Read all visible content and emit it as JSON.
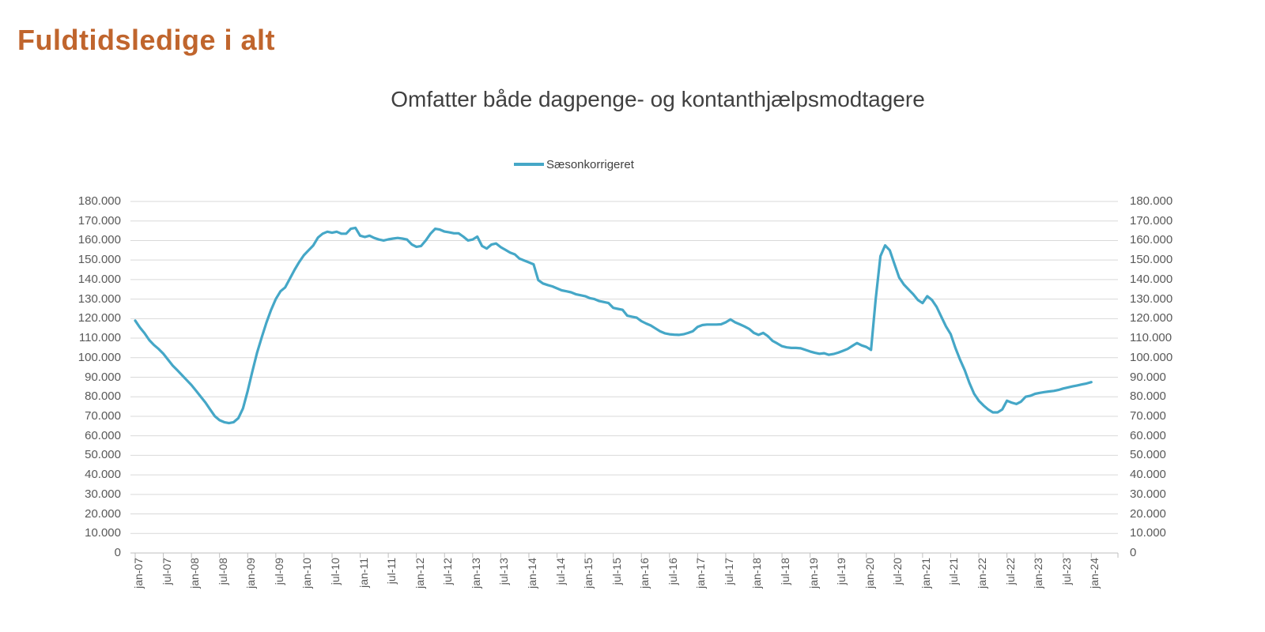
{
  "page": {
    "title": "Fuldtidsledige i alt"
  },
  "chart": {
    "title": "Omfatter både dagpenge- og kontanthjælpsmodtagere",
    "legend": {
      "label": "Sæsonkorrigeret"
    },
    "colors": {
      "series": "#45A7C7",
      "page_title": "#C0652D",
      "chart_title_text": "#404040",
      "axis_text": "#595959",
      "gridline": "#D9D9D9",
      "axis_line": "#BFBFBF"
    }
  },
  "chart_data": {
    "type": "line",
    "title": "Omfatter både dagpenge- og kontanthjælpsmodtagere",
    "x_start": "jan-07",
    "x_end": "jan-24",
    "x_frequency": "monthly",
    "x_tick_labels": [
      "jan-07",
      "jul-07",
      "jan-08",
      "jul-08",
      "jan-09",
      "jul-09",
      "jan-10",
      "jul-10",
      "jan-11",
      "jul-11",
      "jan-12",
      "jul-12",
      "jan-13",
      "jul-13",
      "jan-14",
      "jul-14",
      "jan-15",
      "jul-15",
      "jan-16",
      "jul-16",
      "jan-17",
      "jul-17",
      "jan-18",
      "jul-18",
      "jan-19",
      "jul-19",
      "jan-20",
      "jul-20",
      "jan-21",
      "jul-21",
      "jan-22",
      "jul-22",
      "jan-23",
      "jul-23",
      "jan-24"
    ],
    "ylim": [
      0,
      180000
    ],
    "y_tick_interval": 10000,
    "y_tick_labels": [
      "180.000",
      "170.000",
      "160.000",
      "150.000",
      "140.000",
      "130.000",
      "120.000",
      "110.000",
      "100.000",
      "90.000",
      "80.000",
      "70.000",
      "60.000",
      "50.000",
      "40.000",
      "30.000",
      "20.000",
      "10.000",
      "0"
    ],
    "grid": "horizontal",
    "legend_position": "top-center",
    "y_axis_sides": "both",
    "series": [
      {
        "name": "Sæsonkorrigeret",
        "color": "#45A7C7",
        "values": [
          119000,
          115500,
          112500,
          109000,
          106500,
          104500,
          102000,
          99000,
          96000,
          93500,
          91000,
          88500,
          86000,
          83000,
          80000,
          77000,
          73500,
          70000,
          68000,
          67000,
          66500,
          67000,
          69000,
          74000,
          83000,
          93000,
          102500,
          110500,
          118000,
          124500,
          130000,
          134000,
          136000,
          140500,
          145000,
          149000,
          152500,
          155000,
          157500,
          161500,
          163500,
          164500,
          164000,
          164500,
          163500,
          163500,
          166000,
          166500,
          162500,
          161800,
          162500,
          161300,
          160500,
          160000,
          160600,
          161000,
          161300,
          161000,
          160500,
          158000,
          156800,
          157200,
          160000,
          163500,
          166000,
          165600,
          164600,
          164200,
          163700,
          163700,
          162000,
          160000,
          160500,
          162000,
          157200,
          155900,
          157900,
          158500,
          156600,
          155200,
          153800,
          152900,
          150700,
          149800,
          148800,
          147800,
          139700,
          138000,
          137200,
          136500,
          135500,
          134500,
          134000,
          133500,
          132500,
          132000,
          131500,
          130500,
          130000,
          129000,
          128500,
          128000,
          125500,
          125000,
          124500,
          121500,
          121000,
          120500,
          118700,
          117500,
          116500,
          115000,
          113500,
          112500,
          112000,
          111800,
          111700,
          112000,
          112700,
          113600,
          115800,
          116700,
          117000,
          117000,
          117000,
          117100,
          118100,
          119600,
          118100,
          117100,
          116000,
          114700,
          112700,
          111700,
          112700,
          111000,
          108600,
          107300,
          105900,
          105300,
          105000,
          105000,
          104800,
          104000,
          103200,
          102500,
          102000,
          102300,
          101500,
          101900,
          102600,
          103500,
          104500,
          106000,
          107500,
          106300,
          105500,
          104000,
          130000,
          152000,
          157500,
          155000,
          148000,
          141000,
          137500,
          135000,
          132500,
          129500,
          128000,
          131500,
          129500,
          126000,
          121000,
          116000,
          112000,
          105000,
          99000,
          93500,
          87000,
          81500,
          78000,
          75500,
          73500,
          72000,
          72000,
          73500,
          78000,
          77000,
          76300,
          77500,
          80000,
          80500,
          81500,
          82000,
          82400,
          82700,
          83000,
          83500,
          84200,
          84800,
          85300,
          85800,
          86300,
          86800,
          87500
        ]
      }
    ]
  }
}
